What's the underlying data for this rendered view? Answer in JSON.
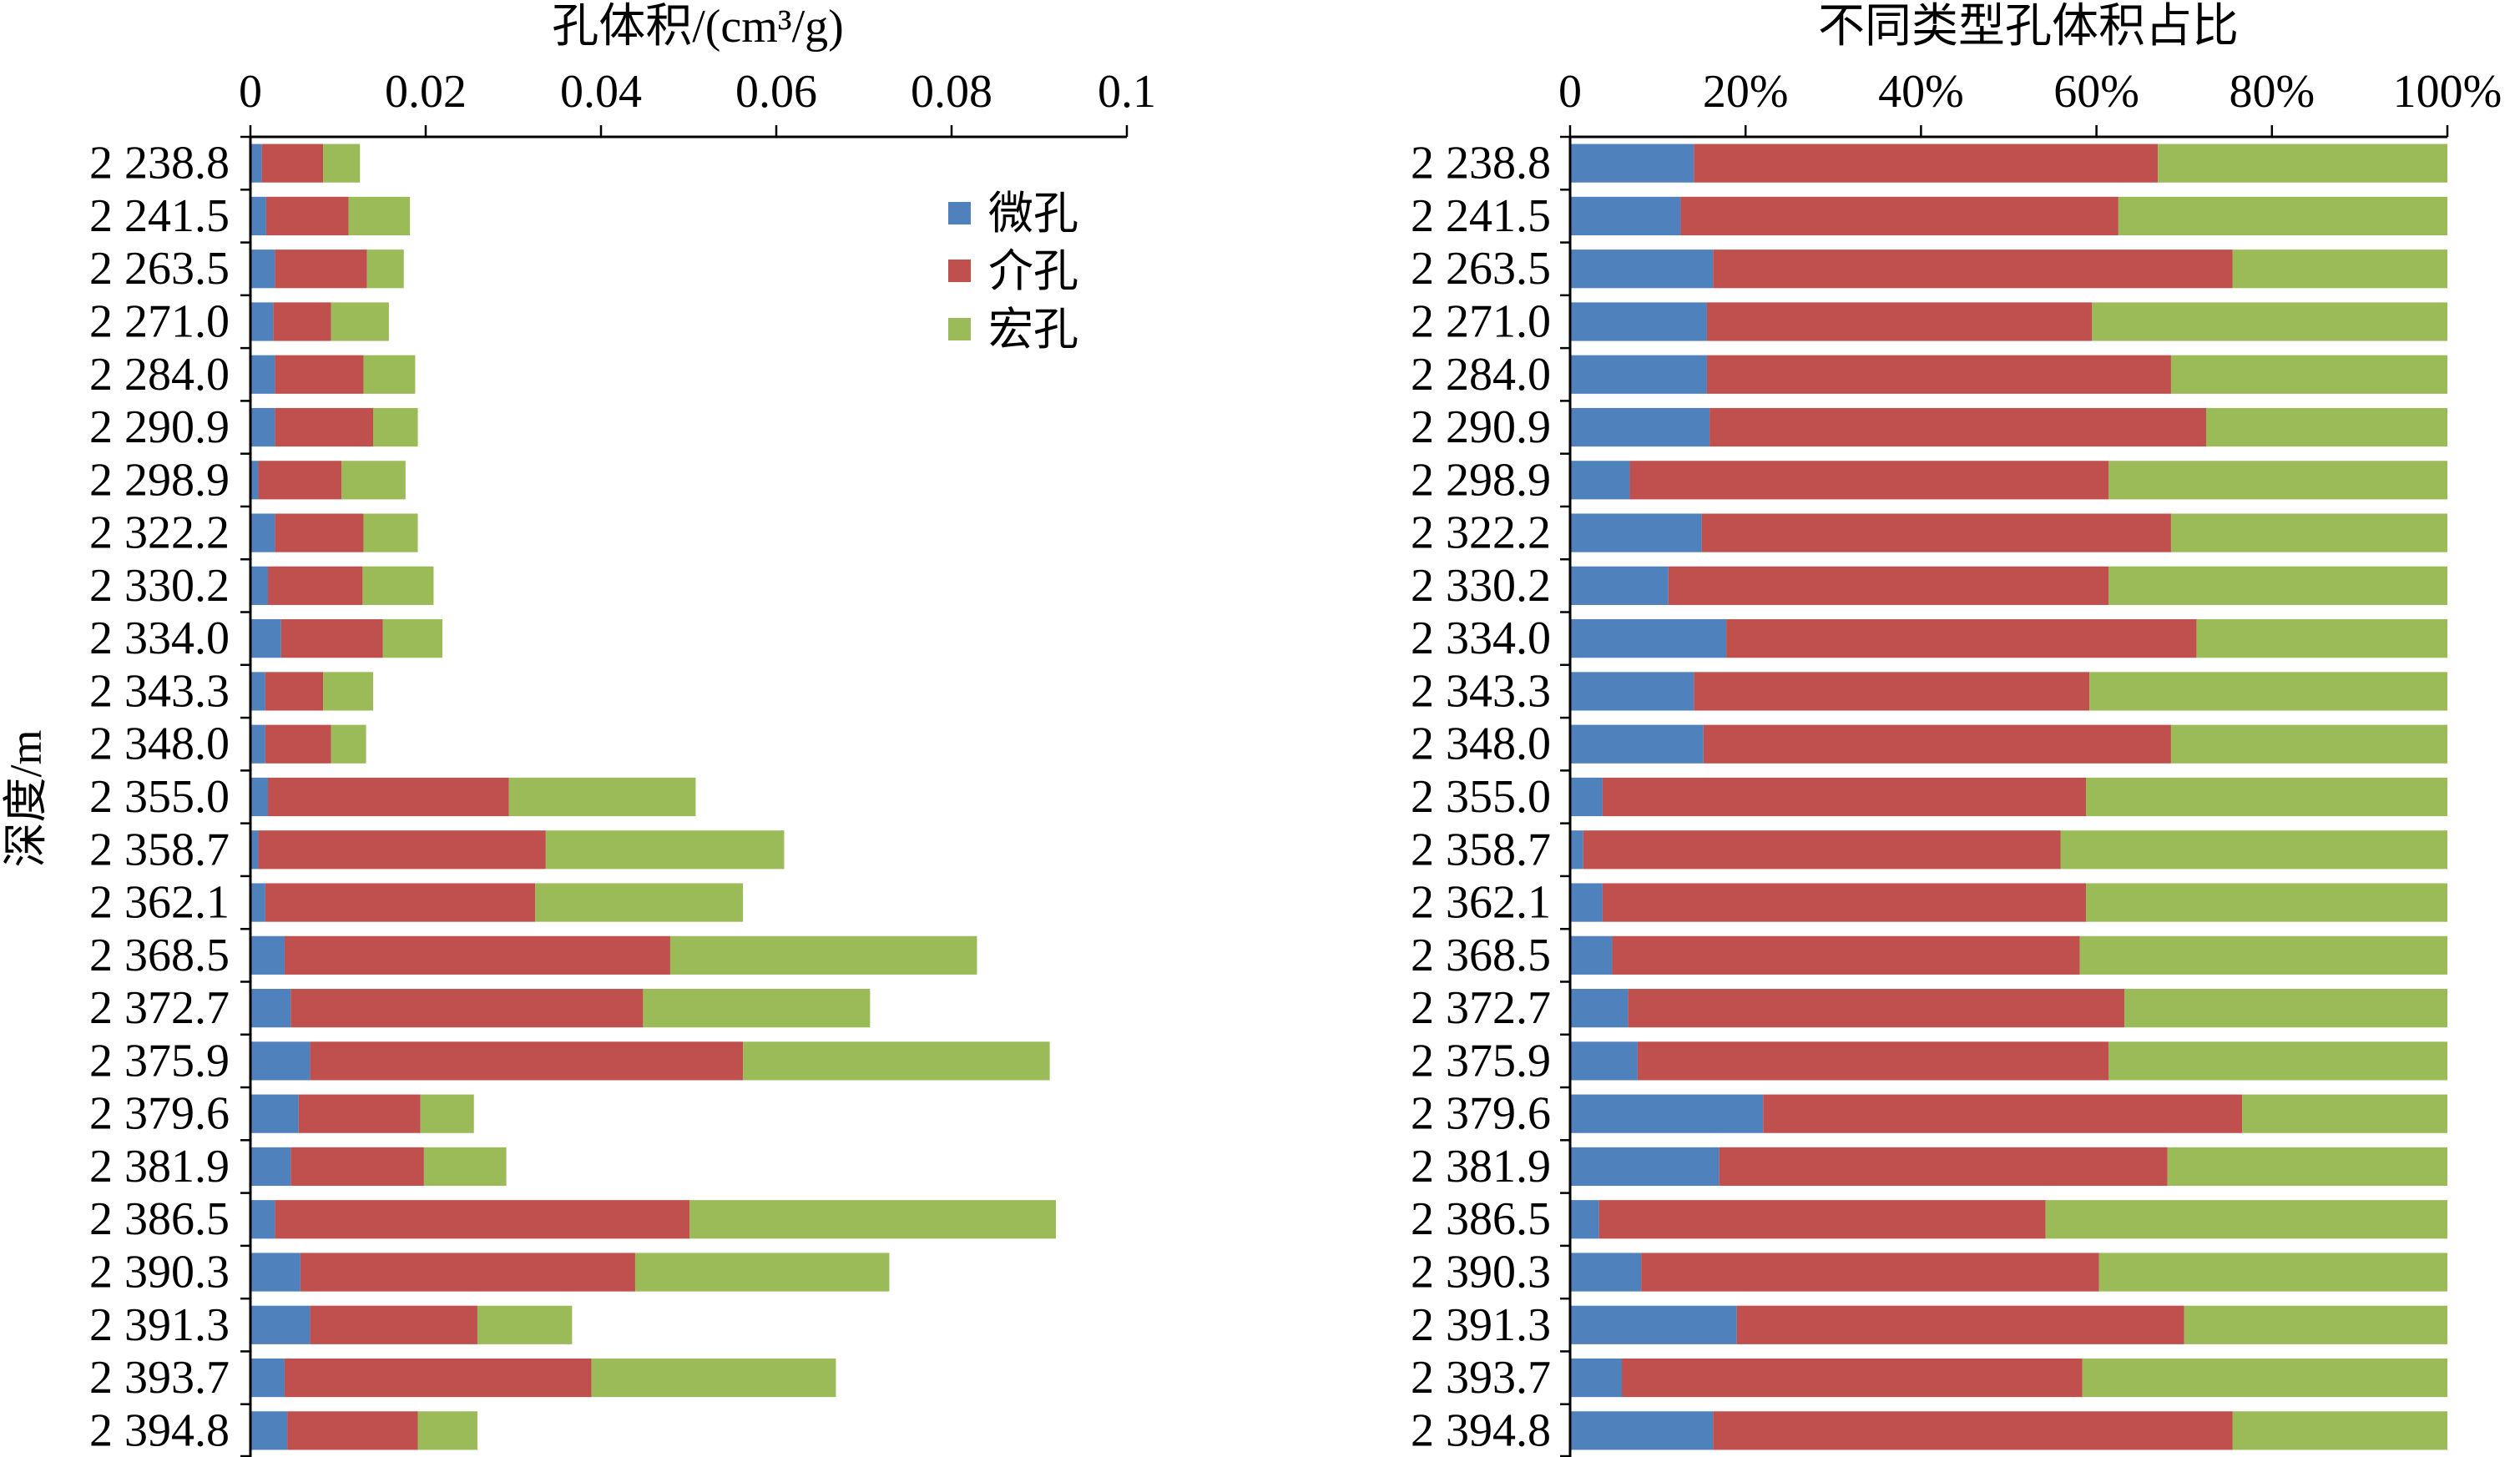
{
  "chart_data": [
    {
      "type": "bar",
      "orientation": "horizontal",
      "stacked": true,
      "title": "孔体积/(cm³/g)",
      "xlabel": "",
      "ylabel": "深度/m",
      "x_axis_position": "top",
      "grid": false,
      "legend_position": "top-right",
      "xlim": [
        0,
        0.1
      ],
      "xticks": [
        "0",
        "0.02",
        "0.04",
        "0.06",
        "0.08",
        "0.1"
      ],
      "categories": [
        "2 238.8",
        "2 241.5",
        "2 263.5",
        "2 271.0",
        "2 284.0",
        "2 290.9",
        "2 298.9",
        "2 322.2",
        "2 330.2",
        "2 334.0",
        "2 343.3",
        "2 348.0",
        "2 355.0",
        "2 358.7",
        "2 362.1",
        "2 368.5",
        "2 372.7",
        "2 375.9",
        "2 379.6",
        "2 381.9",
        "2 386.5",
        "2 390.3",
        "2 391.3",
        "2 393.7",
        "2 394.8"
      ],
      "series": [
        {
          "name": "微孔",
          "color": "#4F81BD",
          "values": [
            0.0013,
            0.0018,
            0.0028,
            0.0026,
            0.0028,
            0.0028,
            0.0009,
            0.0028,
            0.002,
            0.0035,
            0.0017,
            0.0017,
            0.002,
            0.0009,
            0.0017,
            0.0039,
            0.0046,
            0.0068,
            0.0055,
            0.0046,
            0.0028,
            0.0057,
            0.0068,
            0.0039,
            0.0042
          ]
        },
        {
          "name": "介孔",
          "color": "#C0504D",
          "values": [
            0.007,
            0.0094,
            0.0105,
            0.0066,
            0.0101,
            0.0112,
            0.0095,
            0.0101,
            0.0108,
            0.0116,
            0.0066,
            0.0075,
            0.0275,
            0.0328,
            0.0308,
            0.044,
            0.0402,
            0.0494,
            0.0139,
            0.0152,
            0.0473,
            0.0382,
            0.0191,
            0.035,
            0.0149
          ]
        },
        {
          "name": "宏孔",
          "color": "#9BBB59",
          "values": [
            0.0042,
            0.007,
            0.0042,
            0.0066,
            0.0059,
            0.0051,
            0.0073,
            0.0062,
            0.0081,
            0.0068,
            0.0057,
            0.004,
            0.0213,
            0.0272,
            0.0237,
            0.035,
            0.0259,
            0.035,
            0.0061,
            0.0094,
            0.0418,
            0.029,
            0.0108,
            0.0279,
            0.0068
          ]
        }
      ]
    },
    {
      "type": "bar",
      "orientation": "horizontal",
      "stacked": true,
      "percent_stacked": true,
      "title": "不同类型孔体积占比",
      "xlabel": "",
      "ylabel": "",
      "x_axis_position": "top",
      "grid": false,
      "xlim": [
        0,
        100
      ],
      "xticks": [
        "0",
        "20%",
        "40%",
        "60%",
        "80%",
        "100%"
      ],
      "categories": [
        "2 238.8",
        "2 241.5",
        "2 263.5",
        "2 271.0",
        "2 284.0",
        "2 290.9",
        "2 298.9",
        "2 322.2",
        "2 330.2",
        "2 334.0",
        "2 343.3",
        "2 348.0",
        "2 355.0",
        "2 358.7",
        "2 362.1",
        "2 368.5",
        "2 372.7",
        "2 375.9",
        "2 379.6",
        "2 381.9",
        "2 386.5",
        "2 390.3",
        "2 391.3",
        "2 393.7",
        "2 394.8"
      ],
      "series": [
        {
          "color": "#4F81BD",
          "values": [
            14.1,
            12.6,
            16.3,
            15.6,
            15.6,
            15.9,
            6.8,
            15.0,
            11.2,
            17.8,
            14.1,
            15.2,
            3.7,
            1.5,
            3.7,
            4.8,
            6.6,
            7.7,
            22.0,
            17.0,
            3.3,
            8.1,
            19.0,
            5.9,
            16.3
          ]
        },
        {
          "color": "#C0504D",
          "values": [
            52.9,
            49.9,
            59.2,
            43.9,
            52.9,
            56.6,
            54.6,
            53.5,
            50.2,
            53.6,
            45.1,
            53.3,
            55.1,
            54.4,
            55.1,
            53.3,
            56.6,
            53.7,
            54.6,
            51.1,
            50.9,
            52.2,
            51.0,
            52.5,
            59.2
          ]
        },
        {
          "color": "#9BBB59",
          "values": [
            33.0,
            37.5,
            24.5,
            40.5,
            31.5,
            27.5,
            38.6,
            31.5,
            38.6,
            28.6,
            40.8,
            31.5,
            41.2,
            44.1,
            41.2,
            41.9,
            36.8,
            38.6,
            23.4,
            31.9,
            45.8,
            39.7,
            30.0,
            41.6,
            24.5
          ]
        }
      ]
    }
  ]
}
